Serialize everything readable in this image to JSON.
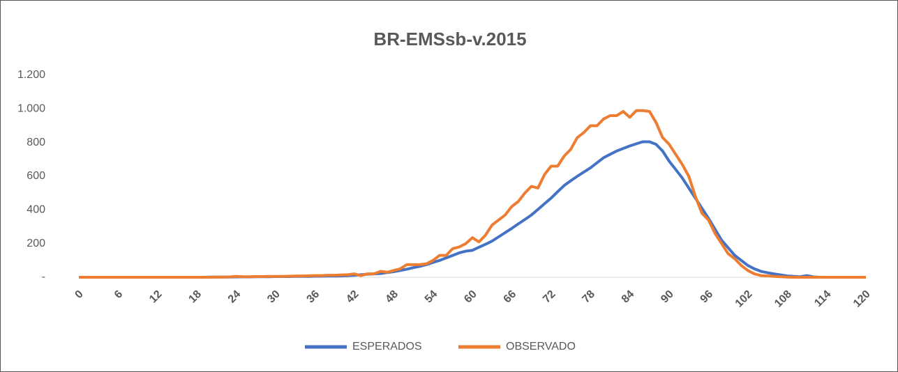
{
  "chart_data": {
    "type": "line",
    "title": "BR-EMSsb-v.2015",
    "x": [
      0,
      1,
      2,
      3,
      4,
      5,
      6,
      7,
      8,
      9,
      10,
      11,
      12,
      13,
      14,
      15,
      16,
      17,
      18,
      19,
      20,
      21,
      22,
      23,
      24,
      25,
      26,
      27,
      28,
      29,
      30,
      31,
      32,
      33,
      34,
      35,
      36,
      37,
      38,
      39,
      40,
      41,
      42,
      43,
      44,
      45,
      46,
      47,
      48,
      49,
      50,
      51,
      52,
      53,
      54,
      55,
      56,
      57,
      58,
      59,
      60,
      61,
      62,
      63,
      64,
      65,
      66,
      67,
      68,
      69,
      70,
      71,
      72,
      73,
      74,
      75,
      76,
      77,
      78,
      79,
      80,
      81,
      82,
      83,
      84,
      85,
      86,
      87,
      88,
      89,
      90,
      91,
      92,
      93,
      94,
      95,
      96,
      97,
      98,
      99,
      100,
      101,
      102,
      103,
      104,
      105,
      106,
      107,
      108,
      109,
      110,
      111,
      112,
      113,
      114,
      115,
      116,
      117,
      118,
      119,
      120
    ],
    "xlim": [
      0,
      120
    ],
    "xticks": [
      0,
      6,
      12,
      18,
      24,
      30,
      36,
      42,
      48,
      54,
      60,
      66,
      72,
      78,
      84,
      90,
      96,
      102,
      108,
      114,
      120
    ],
    "ylim": [
      0,
      1200
    ],
    "yticks": [
      {
        "value": 0,
        "label": "-"
      },
      200,
      400,
      600,
      800,
      {
        "value": 1000,
        "label": "1.000"
      },
      {
        "value": 1200,
        "label": "1.200"
      }
    ],
    "grid": false,
    "legend": "bottom",
    "series": [
      {
        "name": "ESPERADOS",
        "color": "#4472c4",
        "values": [
          0,
          0,
          0,
          0,
          0,
          0,
          0,
          0,
          0,
          0,
          0,
          0,
          0,
          0,
          0,
          0,
          0,
          0,
          0,
          0,
          1,
          1,
          1,
          1,
          2,
          2,
          2,
          3,
          3,
          3,
          4,
          4,
          4,
          5,
          5,
          5,
          6,
          6,
          7,
          7,
          8,
          10,
          12,
          15,
          18,
          20,
          22,
          28,
          33,
          40,
          48,
          57,
          65,
          75,
          88,
          100,
          115,
          130,
          145,
          155,
          160,
          178,
          196,
          215,
          240,
          265,
          290,
          317,
          343,
          370,
          403,
          437,
          470,
          508,
          545,
          573,
          600,
          625,
          650,
          680,
          710,
          730,
          750,
          765,
          780,
          793,
          805,
          805,
          790,
          750,
          690,
          640,
          590,
          530,
          470,
          410,
          350,
          285,
          220,
          175,
          130,
          100,
          70,
          50,
          35,
          27,
          20,
          14,
          8,
          5,
          3,
          10,
          2,
          0,
          0,
          0,
          0,
          0,
          0,
          0,
          0
        ]
      },
      {
        "name": "OBSERVADO",
        "color": "#ed7d31",
        "values": [
          0,
          0,
          0,
          0,
          0,
          0,
          0,
          0,
          0,
          0,
          0,
          0,
          0,
          0,
          0,
          0,
          0,
          0,
          0,
          0,
          0,
          1,
          1,
          2,
          5,
          3,
          3,
          4,
          4,
          5,
          5,
          5,
          6,
          7,
          8,
          9,
          10,
          10,
          12,
          12,
          14,
          15,
          20,
          10,
          20,
          20,
          35,
          30,
          40,
          50,
          75,
          75,
          75,
          80,
          100,
          130,
          130,
          170,
          180,
          200,
          235,
          210,
          250,
          310,
          340,
          370,
          420,
          450,
          500,
          540,
          530,
          610,
          660,
          660,
          720,
          760,
          830,
          860,
          900,
          900,
          940,
          960,
          960,
          985,
          950,
          990,
          990,
          985,
          920,
          830,
          790,
          730,
          670,
          600,
          480,
          380,
          340,
          260,
          200,
          140,
          110,
          70,
          40,
          20,
          10,
          8,
          5,
          3,
          1,
          0,
          0,
          0,
          0,
          0,
          0,
          0,
          0,
          0,
          0,
          0,
          0
        ]
      }
    ]
  }
}
